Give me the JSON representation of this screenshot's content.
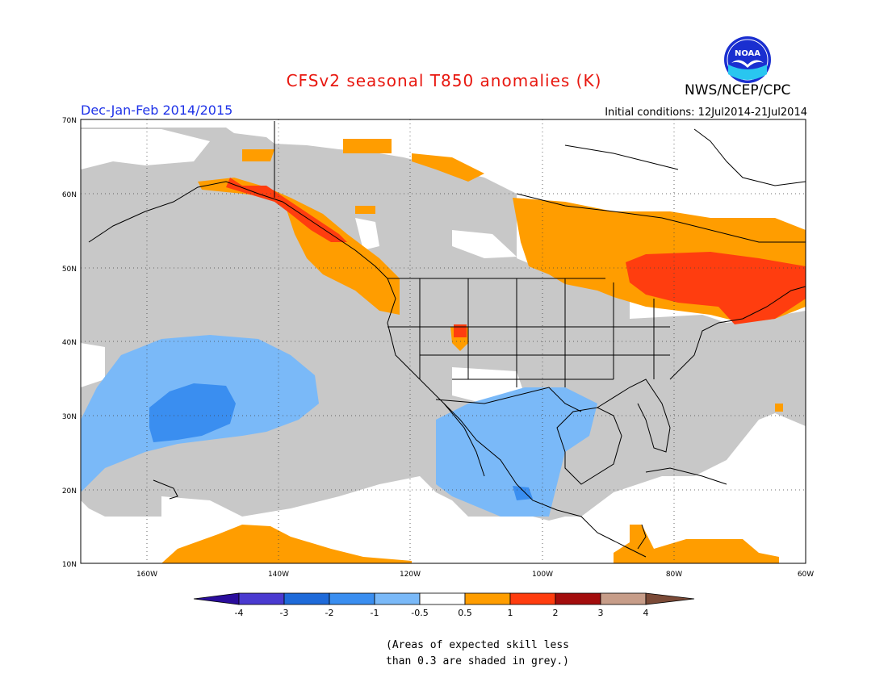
{
  "header": {
    "title": "CFSv2 seasonal T850 anomalies (K)",
    "agency": "NWS/NCEP/CPC",
    "season": "Dec-Jan-Feb 2014/2015",
    "initial_conditions": "Initial conditions: 12Jul2014-21Jul2014",
    "logo_text": "NOAA"
  },
  "map": {
    "lat_labels": [
      "70N",
      "60N",
      "50N",
      "40N",
      "30N",
      "20N",
      "10N"
    ],
    "lon_labels": [
      "160W",
      "140W",
      "120W",
      "100W",
      "80W",
      "60W"
    ],
    "colors": {
      "skill_grey": "#c8c8c8",
      "neg_05_1": "#7ab9f8",
      "neg_1_2": "#3a8ef0",
      "pos_05_1": "#ff9d00",
      "pos_1_2": "#ff3d0f"
    }
  },
  "legend": {
    "labels": [
      "-4",
      "-3",
      "-2",
      "-1",
      "-0.5",
      "0.5",
      "1",
      "2",
      "3",
      "4"
    ],
    "colors": [
      "#2a0d9c",
      "#4a3ad0",
      "#1e6ad9",
      "#3a8ef0",
      "#7ab9f8",
      "#ffffff",
      "#ff9d00",
      "#ff3d0f",
      "#a30d0d",
      "#c79d89",
      "#7b4a37"
    ]
  },
  "footnote": {
    "line1": "(Areas of expected skill less",
    "line2": "than 0.3 are shaded in grey.)"
  }
}
